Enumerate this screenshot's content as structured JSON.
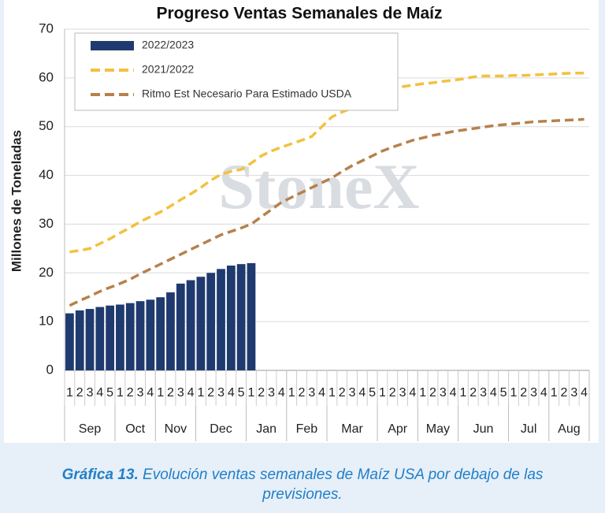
{
  "chart_data": {
    "type": "bar_line",
    "title": "Progreso Ventas Semanales de Maíz",
    "y_label": "Millones de Toneladas",
    "watermark": "StoneX",
    "ylim": [
      0,
      70
    ],
    "yticks": [
      0,
      10,
      20,
      30,
      40,
      50,
      60,
      70
    ],
    "grid": true,
    "legend": "top-left",
    "month_groups": [
      {
        "label": "Sep",
        "weeks": [
          "1",
          "2",
          "3",
          "4",
          "5"
        ]
      },
      {
        "label": "Oct",
        "weeks": [
          "1",
          "2",
          "3",
          "4"
        ]
      },
      {
        "label": "Nov",
        "weeks": [
          "1",
          "2",
          "3",
          "4"
        ]
      },
      {
        "label": "Dec",
        "weeks": [
          "1",
          "2",
          "3",
          "4",
          "5"
        ]
      },
      {
        "label": "Jan",
        "weeks": [
          "1",
          "2",
          "3",
          "4"
        ]
      },
      {
        "label": "Feb",
        "weeks": [
          "1",
          "2",
          "3",
          "4"
        ]
      },
      {
        "label": "Mar",
        "weeks": [
          "1",
          "2",
          "3",
          "4",
          "5"
        ]
      },
      {
        "label": "Apr",
        "weeks": [
          "1",
          "2",
          "3",
          "4"
        ]
      },
      {
        "label": "May",
        "weeks": [
          "1",
          "2",
          "3",
          "4"
        ]
      },
      {
        "label": "Jun",
        "weeks": [
          "1",
          "2",
          "3",
          "4",
          "5"
        ]
      },
      {
        "label": "Jul",
        "weeks": [
          "1",
          "2",
          "3",
          "4"
        ]
      },
      {
        "label": "Aug",
        "weeks": [
          "1",
          "2",
          "3",
          "4"
        ]
      }
    ],
    "series": [
      {
        "name": "2022/2023",
        "type": "bar",
        "color": "#1f3a6e",
        "values": [
          11.7,
          12.3,
          12.6,
          13.0,
          13.3,
          13.5,
          13.8,
          14.2,
          14.5,
          15.0,
          16.0,
          17.8,
          18.5,
          19.2,
          20.0,
          20.8,
          21.5,
          21.8,
          22.0,
          null,
          null,
          null,
          null,
          null,
          null,
          null,
          null,
          null,
          null,
          null,
          null,
          null,
          null,
          null,
          null,
          null,
          null,
          null,
          null,
          null,
          null,
          null,
          null,
          null,
          null,
          null,
          null,
          null,
          null,
          null,
          null,
          null
        ]
      },
      {
        "name": "2021/2022",
        "type": "line",
        "color": "#f3c13f",
        "values": [
          24.3,
          24.6,
          25.0,
          26.0,
          27.0,
          28.2,
          29.3,
          30.5,
          31.5,
          32.5,
          33.7,
          35.0,
          36.2,
          37.5,
          39.0,
          40.2,
          40.8,
          41.2,
          42.5,
          44.0,
          45.0,
          45.8,
          46.5,
          47.2,
          48.0,
          50.0,
          52.0,
          53.0,
          53.8,
          54.5,
          55.5,
          56.5,
          57.5,
          58.2,
          58.5,
          58.8,
          59.0,
          59.3,
          59.5,
          59.8,
          60.2,
          60.4,
          60.4,
          60.4,
          60.5,
          60.5,
          60.6,
          60.7,
          60.8,
          60.9,
          61.0,
          61.0
        ]
      },
      {
        "name": "Ritmo Est Necesario Para Estimado USDA",
        "type": "line",
        "color": "#b7814c",
        "values": [
          13.3,
          14.3,
          15.2,
          16.2,
          17.0,
          17.8,
          18.7,
          19.8,
          20.8,
          21.8,
          22.8,
          23.8,
          24.8,
          25.8,
          26.8,
          27.8,
          28.5,
          29.2,
          30.0,
          31.5,
          33.0,
          34.5,
          35.5,
          36.5,
          37.5,
          38.5,
          39.5,
          40.8,
          42.0,
          43.0,
          44.0,
          45.0,
          45.8,
          46.5,
          47.2,
          47.7,
          48.2,
          48.6,
          49.0,
          49.3,
          49.6,
          49.9,
          50.2,
          50.4,
          50.6,
          50.8,
          51.0,
          51.1,
          51.2,
          51.3,
          51.4,
          51.5
        ]
      }
    ],
    "caption": {
      "label": "Gráfica 13.",
      "text": "Evolución ventas semanales de Maíz USA por debajo de las previsiones."
    }
  }
}
